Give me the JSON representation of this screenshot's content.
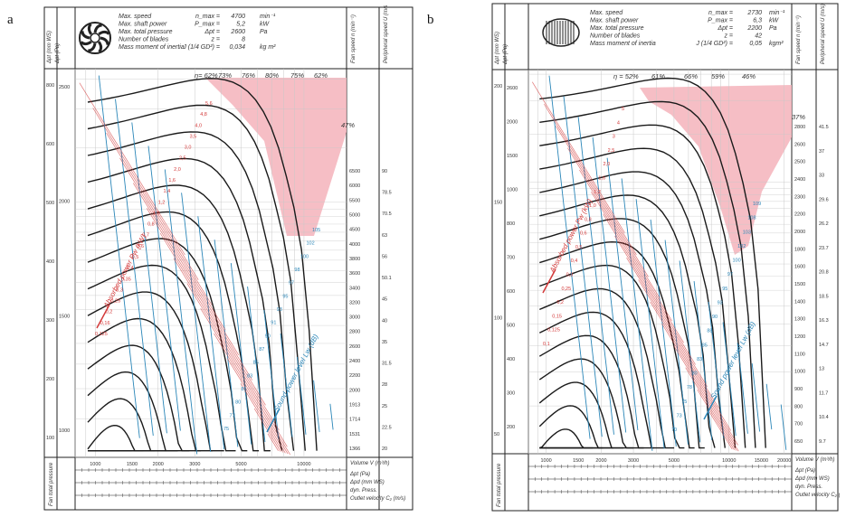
{
  "chart_data": [
    {
      "panel": "a",
      "type": "line",
      "header": {
        "labels": [
          "Max. speed",
          "Max. shaft power",
          "Max. total pressure",
          "Number of blades",
          "Mass moment of inertia"
        ],
        "symbols": [
          "n_max =",
          "P_max =",
          "Δpt =",
          "z =",
          "J (1/4 GD²) ="
        ],
        "values": [
          "4700",
          "5,2",
          "2600",
          "8",
          "0,034"
        ],
        "units": [
          "min⁻¹",
          "kW",
          "Pa",
          "",
          "kg m²"
        ]
      },
      "left_axis_labels": [
        "Δpt (mm WS)",
        "Δpt (Pa)"
      ],
      "right_axis_labels": [
        "Fan speed n (min⁻¹)",
        "Peripheral speed U (m/s)"
      ],
      "efficiency_labels": [
        "η= 62%",
        "73%",
        "76%",
        "80%",
        "75%",
        "62%"
      ],
      "right_eta_label": "47%",
      "left_outer_ticks": [
        "100",
        "200",
        "300",
        "400",
        "500",
        "600",
        "800"
      ],
      "left_inner_ticks": [
        "1000",
        "1500",
        "2000",
        "2500"
      ],
      "fan_speed_ticks": [
        "6500",
        "6000",
        "5500",
        "5000",
        "4500",
        "4000",
        "3800",
        "3600",
        "3400",
        "3200",
        "3000",
        "2800",
        "2600",
        "2400",
        "2200",
        "2000",
        "1913",
        "1714",
        "1531",
        "1366"
      ],
      "peripheral_speed_ticks": [
        "90",
        "78.5",
        "70.5",
        "63",
        "56",
        "50.1",
        "45",
        "40",
        "35",
        "31.5",
        "28",
        "25",
        "22.5",
        "20"
      ],
      "x_axis_label": "Volume V (m³/h)",
      "x_ticks": [
        "1000",
        "1500",
        "2000",
        "3000",
        "5000",
        "10000"
      ],
      "bottom_labels": [
        "Δpt (Pa)",
        "Δpd (mm WS)",
        "dyn. Press.",
        "Outlet velocity C₂ (m/s)",
        "Fan total pressure"
      ],
      "absorbed_power_label": "Absorbed power Pw (kW)",
      "sound_power_label": "Sound power level Lw (dB)",
      "power_labels": [
        "5,6",
        "4,8",
        "4,0",
        "3,5",
        "3,0",
        "2,5",
        "2,0",
        "1,6",
        "1,4",
        "1,2",
        "1,0",
        "0,8",
        "0,7",
        "0,6",
        "0,5",
        "0,4",
        "0,35",
        "0,3",
        "0,25",
        "0,2",
        "0,16",
        "0,125"
      ],
      "sound_labels": [
        "105",
        "102",
        "100",
        "98",
        "97",
        "95",
        "93",
        "91",
        "90",
        "87",
        "85",
        "83",
        "81",
        "80",
        "77",
        "75"
      ],
      "x_range": [
        800,
        16000
      ],
      "y_range_pa": [
        150,
        2700
      ],
      "curve_speeds": [
        6500,
        6000,
        5500,
        5000,
        4500,
        4000,
        3800,
        3600,
        3400,
        3200,
        3000,
        2800,
        2600,
        2400,
        2200,
        2000,
        1913,
        1714,
        1531,
        1366
      ]
    },
    {
      "panel": "b",
      "type": "line",
      "header": {
        "labels": [
          "Max. speed",
          "Max. shaft power",
          "Max. total pressure",
          "Number of blades",
          "Mass moment of inertia"
        ],
        "symbols": [
          "n_max =",
          "P_max =",
          "Δpt =",
          "z =",
          "J (1/4 GD²) ="
        ],
        "values": [
          "2730",
          "6,3",
          "2200",
          "42",
          "0,05"
        ],
        "units": [
          "min⁻¹",
          "kW",
          "Pa",
          "",
          "kgm²"
        ]
      },
      "left_axis_labels": [
        "Δpt (mm WS)",
        "Δpt (Pa)"
      ],
      "right_axis_labels": [
        "Fan speed n (min⁻¹)",
        "Peripheral speed U (m/s)"
      ],
      "efficiency_labels": [
        "η = 52%",
        "61%",
        "66%",
        "59%",
        "46%"
      ],
      "right_eta_label": "37%",
      "left_outer_ticks": [
        "50",
        "100",
        "150",
        "200"
      ],
      "left_inner_ticks": [
        "200",
        "300",
        "400",
        "500",
        "600",
        "700",
        "800",
        "1000",
        "1500",
        "2000",
        "2600"
      ],
      "fan_speed_ticks": [
        "2800",
        "2600",
        "2500",
        "2400",
        "2300",
        "2200",
        "2000",
        "1800",
        "1600",
        "1500",
        "1400",
        "1300",
        "1200",
        "1100",
        "1000",
        "900",
        "800",
        "700",
        "650"
      ],
      "peripheral_speed_ticks": [
        "41.5",
        "37",
        "33",
        "29.6",
        "26.2",
        "23.7",
        "20.8",
        "18.5",
        "16.3",
        "14.7",
        "13",
        "11.7",
        "10.4",
        "9.7"
      ],
      "x_axis_label": "Volume V (m³/h)",
      "x_ticks": [
        "1000",
        "1500",
        "2000",
        "3000",
        "5000",
        "10000",
        "15000",
        "20000"
      ],
      "bottom_labels": [
        "Δpt (Pa)",
        "Δpd (mm WS)",
        "dyn. Press.",
        "Outlet velocity C₂ (m/s)",
        "Fan total pressure"
      ],
      "absorbed_power_label": "Absorbed power Pw (kW)",
      "sound_power_label": "Sound power level Lw (dB)",
      "power_labels": [
        "5",
        "4",
        "3",
        "2,5",
        "2,0",
        "1,6",
        "1,2",
        "1,0",
        "0,8",
        "0,6",
        "0,5",
        "0,4",
        "0,3",
        "0,25",
        "0,2",
        "0,15",
        "0,125",
        "0,1"
      ],
      "sound_labels": [
        "109",
        "108",
        "103",
        "102",
        "100",
        "97",
        "95",
        "93",
        "90",
        "88",
        "85",
        "83",
        "80",
        "78",
        "75",
        "73",
        "70"
      ],
      "x_range": [
        800,
        22000
      ],
      "y_range_pa": [
        100,
        2600
      ],
      "curve_speeds": [
        2800,
        2600,
        2500,
        2400,
        2300,
        2200,
        2000,
        1800,
        1600,
        1500,
        1400,
        1300,
        1200,
        1100,
        1000,
        900,
        800,
        700,
        650
      ]
    }
  ],
  "colors": {
    "red": "#d33a3a",
    "blue": "#2a86b8",
    "pink": "#f4b3bb",
    "grid": "#c8c8c8",
    "dark": "#222222"
  }
}
